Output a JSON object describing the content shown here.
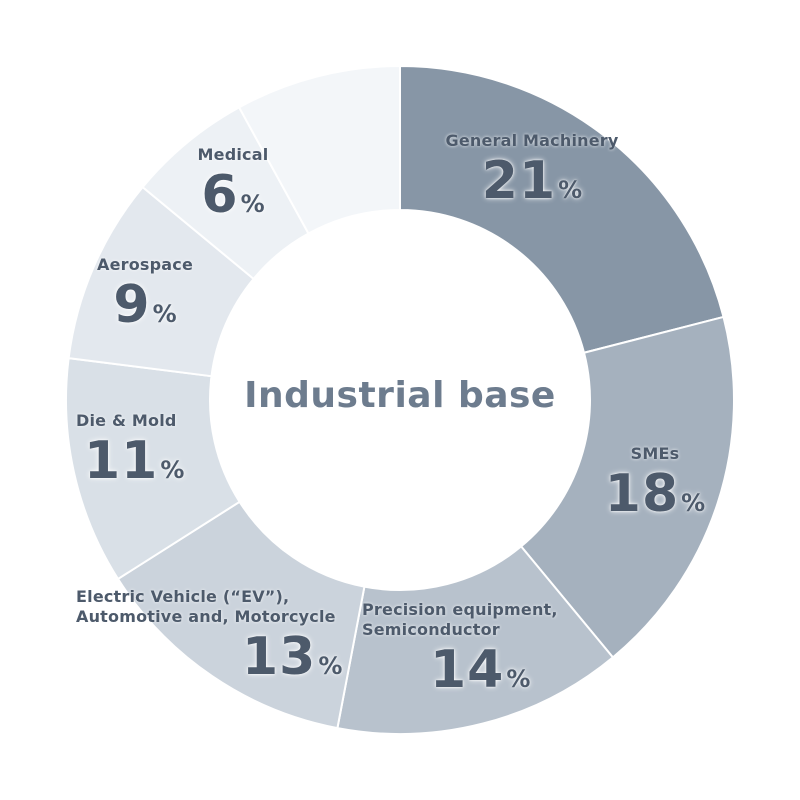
{
  "center_title": "Industrial base",
  "chart_data": {
    "type": "pie",
    "style": "donut",
    "unit": "%",
    "categories": [
      "General Machinery",
      "SMEs",
      "Precision equipment,\nSemiconductor",
      "Electric Vehicle (“EV”),\nAutomotive and, Motorcycle",
      "Die & Mold",
      "Aerospace",
      "Medical",
      ""
    ],
    "values": [
      21,
      18,
      14,
      13,
      11,
      9,
      6,
      8
    ],
    "colors": [
      "#8796a6",
      "#a5b1be",
      "#b8c2cd",
      "#cbd3dc",
      "#d9e0e7",
      "#e3e8ee",
      "#edf1f5",
      "#f3f6f9"
    ]
  },
  "labels": [
    {
      "category": "General Machinery",
      "value": "21",
      "unit": "%"
    },
    {
      "category": "SMEs",
      "value": "18",
      "unit": "%"
    },
    {
      "category": "Precision equipment,\nSemiconductor",
      "value": "14",
      "unit": "%"
    },
    {
      "category": "Electric Vehicle (“EV”),\nAutomotive and, Motorcycle",
      "value": "13",
      "unit": "%"
    },
    {
      "category": "Die & Mold",
      "value": "11",
      "unit": "%"
    },
    {
      "category": "Aerospace",
      "value": "9",
      "unit": "%"
    },
    {
      "category": "Medical",
      "value": "6",
      "unit": "%"
    }
  ]
}
